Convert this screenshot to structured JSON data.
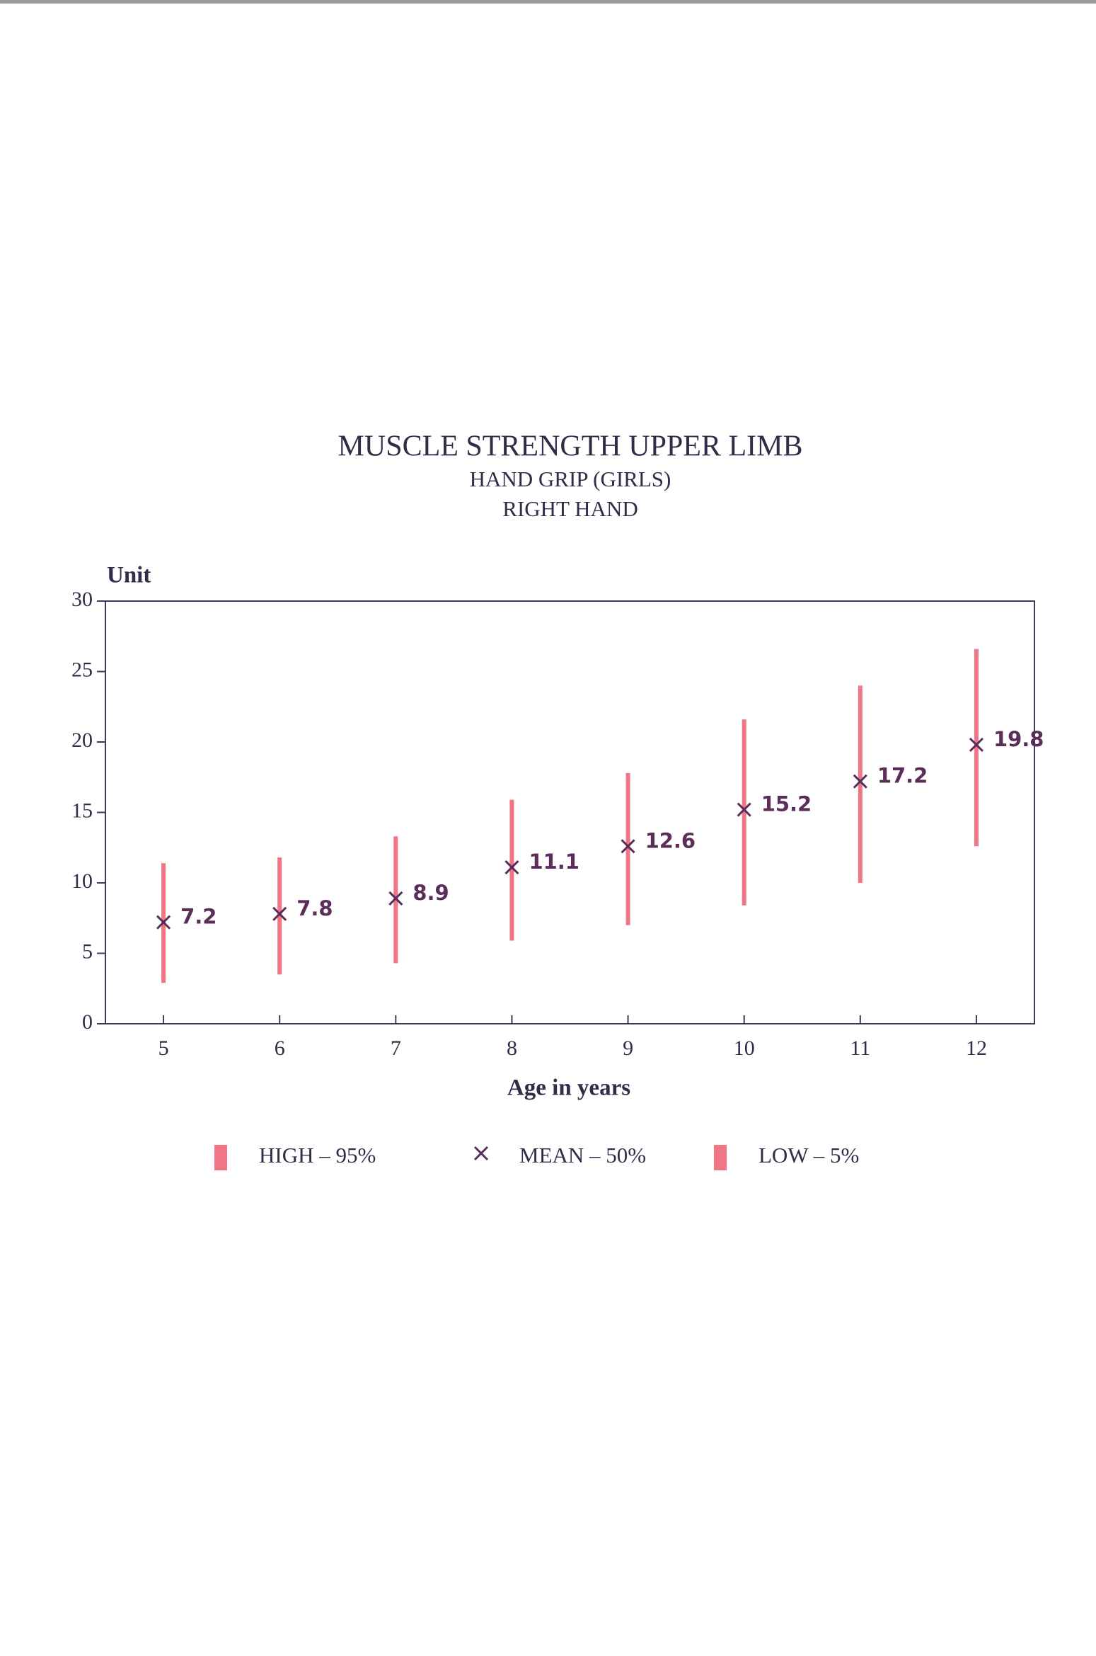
{
  "chart_data": {
    "type": "range",
    "title": "MUSCLE STRENGTH   UPPER LIMB",
    "subtitle": "HAND GRIP   (GIRLS)",
    "subtitle2": "RIGHT HAND",
    "y_label": "Unit",
    "x_label": "Age in years",
    "categories": [
      "5",
      "6",
      "7",
      "8",
      "9",
      "10",
      "11",
      "12"
    ],
    "series": [
      {
        "name": "HIGH – 95%",
        "color": "#f07585",
        "values": [
          11.4,
          11.8,
          13.3,
          15.9,
          17.8,
          21.6,
          24.0,
          26.6
        ]
      },
      {
        "name": "MEAN – 50%",
        "color": "#5a2e58",
        "values": [
          7.2,
          7.8,
          8.9,
          11.1,
          12.6,
          15.2,
          17.2,
          19.8
        ]
      },
      {
        "name": "LOW – 5%",
        "color": "#f07585",
        "values": [
          2.9,
          3.5,
          4.3,
          5.9,
          7.0,
          8.4,
          10.0,
          12.6
        ]
      }
    ],
    "ylim": [
      0,
      30
    ],
    "yticks": [
      0,
      5,
      10,
      15,
      20,
      25,
      30
    ]
  }
}
